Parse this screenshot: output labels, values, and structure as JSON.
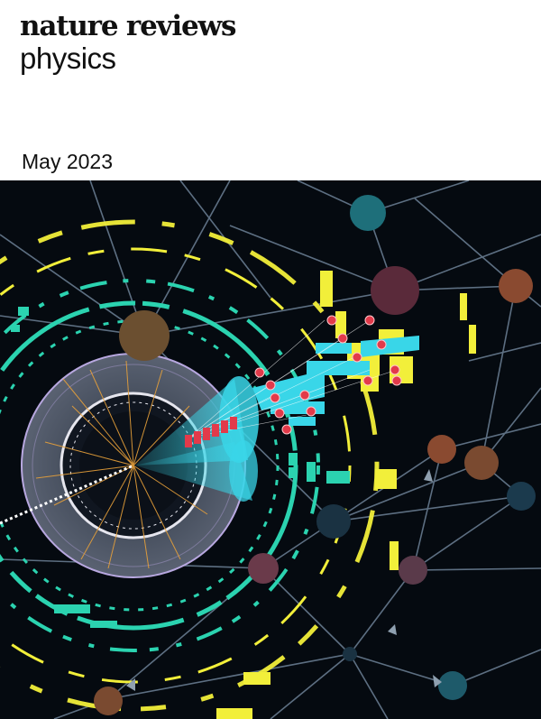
{
  "cover": {
    "journal_name_line1": "nature reviews",
    "journal_name_line2": "physics",
    "issue_date": "May 2023"
  },
  "colors": {
    "background": "#050a10",
    "teal_ring": "#2bd3b0",
    "yellow": "#f2ef3a",
    "cyan_jet": "#39d6e8",
    "red_node": "#e23a4a",
    "orange_tracks": "#e8a13a",
    "network_line": "#5d6f82"
  },
  "art_elements": [
    "particle-collision-event-display",
    "graph-neural-network"
  ]
}
